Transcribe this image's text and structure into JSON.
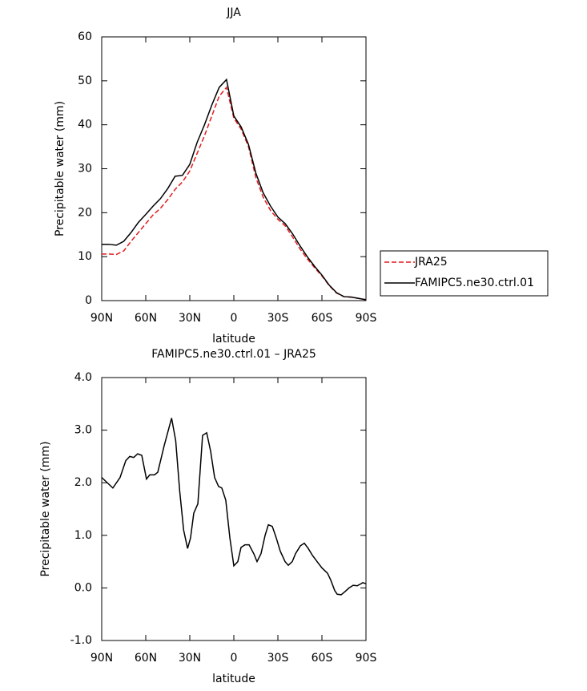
{
  "chart_data": [
    {
      "type": "line",
      "title": "JJA",
      "xlabel": "latitude",
      "ylabel": "Precipitable water (mm)",
      "x": [
        90,
        85,
        80,
        75,
        70,
        65,
        60,
        55,
        50,
        45,
        40,
        35,
        30,
        25,
        20,
        15,
        10,
        5,
        0,
        -5,
        -10,
        -15,
        -20,
        -25,
        -30,
        -35,
        -40,
        -45,
        -50,
        -55,
        -60,
        -65,
        -70,
        -75,
        -80,
        -85,
        -90
      ],
      "series": [
        {
          "name": "JRA25",
          "color": "#e41a1c",
          "dash": true,
          "values": [
            10.6,
            10.6,
            10.5,
            11.3,
            13.5,
            15.5,
            17.5,
            19.5,
            21,
            23,
            25.3,
            27,
            29.5,
            33.5,
            37.5,
            42,
            46.5,
            48.5,
            41.5,
            39,
            35,
            28,
            23.5,
            20.5,
            18.5,
            17,
            14.5,
            11.8,
            9.5,
            7.5,
            5.6,
            3.4,
            1.7,
            0.9,
            0.8,
            0.5,
            0.2
          ]
        },
        {
          "name": "FAMIPC5.ne30.ctrl.01",
          "color": "#000000",
          "dash": false,
          "values": [
            12.8,
            12.8,
            12.6,
            13.5,
            15.5,
            17.8,
            19.6,
            21.5,
            23.2,
            25.5,
            28.3,
            28.5,
            31,
            36,
            40,
            44.5,
            48.5,
            50.3,
            42,
            39.5,
            35.5,
            29,
            24.5,
            21.5,
            19,
            17.5,
            15.2,
            12.5,
            10,
            7.8,
            5.8,
            3.5,
            1.8,
            0.9,
            0.8,
            0.5,
            0.2
          ]
        }
      ],
      "xlim": [
        90,
        -90
      ],
      "xticks": [
        {
          "value": 90,
          "label": "90N"
        },
        {
          "value": 60,
          "label": "60N"
        },
        {
          "value": 30,
          "label": "30N"
        },
        0,
        {
          "value": -30,
          "label": "30S"
        },
        {
          "value": -60,
          "label": "60S"
        },
        {
          "value": -90,
          "label": "90S"
        }
      ],
      "ylim": [
        0,
        60
      ],
      "yticks": [
        0,
        10,
        20,
        30,
        40,
        50,
        60
      ],
      "legend": "right"
    },
    {
      "type": "line",
      "title": "FAMIPC5.ne30.ctrl.01 – JRA25",
      "xlabel": "latitude",
      "ylabel": "Precipitable water (mm)",
      "x": [
        90,
        82.4,
        77.5,
        73.6,
        70.9,
        68.2,
        65.5,
        62.7,
        59.5,
        57.3,
        54,
        51.8,
        47.5,
        42.4,
        39.6,
        36.9,
        34.2,
        31.5,
        29.5,
        27.3,
        24.5,
        21.3,
        18.5,
        15.8,
        13.1,
        10.4,
        8.2,
        5.5,
        2.7,
        0,
        -2.7,
        -4.9,
        -7.6,
        -10.4,
        -13.6,
        -15.8,
        -18.5,
        -21.3,
        -23.5,
        -26.2,
        -28.9,
        -31.6,
        -34.9,
        -37.1,
        -39.8,
        -42,
        -45.3,
        -48,
        -50.7,
        -53.5,
        -56.7,
        -60,
        -63.8,
        -66,
        -68.7,
        -70.4,
        -73.1,
        -75.3,
        -78.5,
        -81.3,
        -84,
        -86.7,
        -87.8,
        -90
      ],
      "series": [
        {
          "name": "FAMIPC5.ne30.ctrl.01 – JRA25",
          "color": "#000000",
          "dash": false,
          "values": [
            2.1,
            1.9,
            2.1,
            2.42,
            2.5,
            2.48,
            2.55,
            2.52,
            2.07,
            2.15,
            2.15,
            2.2,
            2.7,
            3.23,
            2.8,
            1.85,
            1.1,
            0.75,
            0.95,
            1.42,
            1.6,
            2.9,
            2.95,
            2.6,
            2.1,
            1.93,
            1.9,
            1.67,
            0.95,
            0.42,
            0.5,
            0.77,
            0.82,
            0.82,
            0.65,
            0.5,
            0.65,
            1.0,
            1.2,
            1.17,
            0.95,
            0.7,
            0.5,
            0.43,
            0.5,
            0.65,
            0.8,
            0.85,
            0.75,
            0.62,
            0.5,
            0.38,
            0.28,
            0.15,
            -0.05,
            -0.12,
            -0.13,
            -0.08,
            0.0,
            0.05,
            0.04,
            0.08,
            0.1,
            0.08
          ]
        }
      ],
      "xlim": [
        90,
        -90
      ],
      "xticks": [
        {
          "value": 90,
          "label": "90N"
        },
        {
          "value": 60,
          "label": "60N"
        },
        {
          "value": 30,
          "label": "30N"
        },
        0,
        {
          "value": -30,
          "label": "30S"
        },
        {
          "value": -60,
          "label": "60S"
        },
        {
          "value": -90,
          "label": "90S"
        }
      ],
      "ylim": [
        -1,
        4
      ],
      "yticks": [
        {
          "value": -1,
          "label": "-1.0"
        },
        {
          "value": 0,
          "label": "0.0"
        },
        {
          "value": 1,
          "label": "1.0"
        },
        {
          "value": 2,
          "label": "2.0"
        },
        {
          "value": 3,
          "label": "3.0"
        },
        {
          "value": 4,
          "label": "4.0"
        }
      ]
    }
  ]
}
